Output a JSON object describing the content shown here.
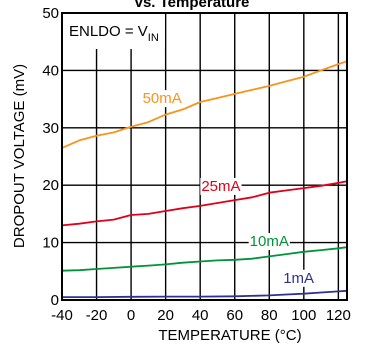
{
  "chart_data": {
    "type": "line",
    "title": "vs. Temperature",
    "xlabel": "TEMPERATURE (°C)",
    "ylabel": "DROPOUT VOLTAGE (mV)",
    "annotation": {
      "main": "ENLDO = V",
      "subscript": "IN"
    },
    "xlim": [
      -40,
      125
    ],
    "ylim": [
      0,
      50
    ],
    "xticks": [
      -40,
      -20,
      0,
      20,
      40,
      60,
      80,
      100,
      120
    ],
    "yticks": [
      0,
      10,
      20,
      30,
      40,
      50
    ],
    "xtick_labels": [
      "-40",
      "-20",
      "0",
      "20",
      "40",
      "60",
      "80",
      "100",
      "120"
    ],
    "ytick_labels": [
      "0",
      "10",
      "20",
      "30",
      "40",
      "50"
    ],
    "grid": true,
    "series": [
      {
        "name": "50mA",
        "color": "#f7941d",
        "x": [
          -40,
          -30,
          -20,
          -10,
          0,
          10,
          20,
          30,
          40,
          50,
          60,
          70,
          80,
          90,
          100,
          110,
          120,
          125
        ],
        "y": [
          26.5,
          27.8,
          28.6,
          29.2,
          30.2,
          31.0,
          32.3,
          33.2,
          34.5,
          35.2,
          35.9,
          36.6,
          37.3,
          38.1,
          38.9,
          40.0,
          41.1,
          41.6
        ]
      },
      {
        "name": "25mA",
        "color": "#e0001b",
        "x": [
          -40,
          -30,
          -20,
          -10,
          0,
          10,
          20,
          30,
          40,
          50,
          60,
          70,
          80,
          90,
          100,
          110,
          120,
          125
        ],
        "y": [
          13.0,
          13.3,
          13.7,
          14.0,
          14.8,
          15.0,
          15.5,
          16.0,
          16.4,
          16.9,
          17.4,
          17.9,
          18.7,
          19.1,
          19.5,
          19.9,
          20.4,
          20.7
        ]
      },
      {
        "name": "10mA",
        "color": "#00933b",
        "x": [
          -40,
          -30,
          -20,
          -10,
          0,
          10,
          20,
          30,
          40,
          50,
          60,
          70,
          80,
          90,
          100,
          110,
          120,
          125
        ],
        "y": [
          5.1,
          5.2,
          5.4,
          5.6,
          5.8,
          6.0,
          6.2,
          6.5,
          6.7,
          6.9,
          7.0,
          7.2,
          7.6,
          8.0,
          8.4,
          8.7,
          9.0,
          9.2
        ]
      },
      {
        "name": "1mA",
        "color": "#2e3192",
        "x": [
          -40,
          -20,
          0,
          20,
          40,
          60,
          80,
          90,
          100,
          110,
          120,
          125
        ],
        "y": [
          0.5,
          0.5,
          0.55,
          0.6,
          0.6,
          0.65,
          0.8,
          0.95,
          1.1,
          1.3,
          1.5,
          1.6
        ]
      }
    ],
    "series_labels": [
      {
        "text": "50mA",
        "x": 18,
        "y": 34.3
      },
      {
        "text": "25mA",
        "x": 52,
        "y": 19.0
      },
      {
        "text": "10mA",
        "x": 80,
        "y": 9.4
      },
      {
        "text": "1mA",
        "x": 97,
        "y": 3.0
      }
    ],
    "colors": {
      "grid": "#000000",
      "background": "#ffffff"
    }
  }
}
